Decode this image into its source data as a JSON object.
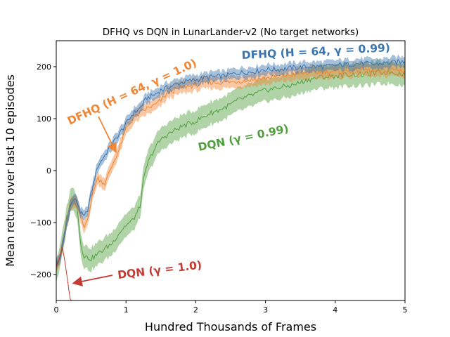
{
  "chart_data": {
    "type": "line",
    "title": "DFHQ vs DQN in LunarLander-v2 (No target networks)",
    "xlabel": "Hundred Thousands of Frames",
    "ylabel": "Mean return over last 10 episodes",
    "xlim": [
      0,
      5
    ],
    "ylim": [
      -250,
      250
    ],
    "xticks": [
      0,
      1,
      2,
      3,
      4,
      5
    ],
    "yticks": [
      -200,
      -100,
      0,
      100,
      200
    ],
    "grid": false,
    "legend": "none",
    "series": [
      {
        "name": "DFHQ (H = 64, γ = 0.99)",
        "color": "#3b75af",
        "band": 10,
        "x": [
          0,
          0.05,
          0.1,
          0.15,
          0.2,
          0.25,
          0.3,
          0.35,
          0.4,
          0.45,
          0.5,
          0.55,
          0.6,
          0.7,
          0.8,
          0.9,
          1.0,
          1.1,
          1.2,
          1.3,
          1.4,
          1.5,
          1.6,
          1.8,
          2.0,
          2.2,
          2.4,
          2.6,
          2.8,
          3.0,
          3.2,
          3.4,
          3.6,
          3.8,
          4.0,
          4.2,
          4.4,
          4.6,
          4.8,
          5.0
        ],
        "y": [
          -180,
          -170,
          -140,
          -100,
          -70,
          -55,
          -60,
          -80,
          -90,
          -75,
          -45,
          -15,
          10,
          30,
          50,
          70,
          90,
          110,
          120,
          140,
          145,
          155,
          160,
          170,
          175,
          180,
          182,
          188,
          190,
          195,
          195,
          198,
          200,
          200,
          202,
          205,
          206,
          205,
          208,
          210
        ]
      },
      {
        "name": "DFHQ (H = 64, γ = 1.0)",
        "color": "#ef8636",
        "band": 12,
        "x": [
          0,
          0.05,
          0.1,
          0.15,
          0.2,
          0.25,
          0.3,
          0.35,
          0.4,
          0.45,
          0.5,
          0.55,
          0.6,
          0.7,
          0.8,
          0.9,
          1.0,
          1.1,
          1.2,
          1.3,
          1.4,
          1.5,
          1.6,
          1.8,
          2.0,
          2.2,
          2.4,
          2.6,
          2.8,
          3.0,
          3.2,
          3.4,
          3.6,
          3.8,
          4.0,
          4.2,
          4.4,
          4.6,
          4.8,
          5.0
        ],
        "y": [
          -180,
          -170,
          -140,
          -100,
          -70,
          -58,
          -65,
          -90,
          -110,
          -90,
          -60,
          -30,
          -15,
          -25,
          10,
          40,
          80,
          100,
          110,
          120,
          125,
          135,
          150,
          160,
          165,
          170,
          170,
          172,
          175,
          178,
          182,
          185,
          188,
          190,
          190,
          192,
          195,
          190,
          195,
          192
        ]
      },
      {
        "name": "DQN (γ = 0.99)",
        "color": "#519e3e",
        "band": 22,
        "x": [
          0,
          0.05,
          0.1,
          0.15,
          0.2,
          0.25,
          0.3,
          0.35,
          0.4,
          0.5,
          0.6,
          0.7,
          0.8,
          0.9,
          1.0,
          1.1,
          1.2,
          1.25,
          1.3,
          1.4,
          1.5,
          1.6,
          1.8,
          2.0,
          2.2,
          2.4,
          2.6,
          2.8,
          3.0,
          3.2,
          3.4,
          3.6,
          3.8,
          4.0,
          4.2,
          4.4,
          4.6,
          4.8,
          5.0
        ],
        "y": [
          -190,
          -170,
          -130,
          -90,
          -60,
          -52,
          -70,
          -140,
          -165,
          -170,
          -160,
          -150,
          -140,
          -120,
          -105,
          -95,
          -70,
          -20,
          10,
          40,
          60,
          70,
          85,
          95,
          110,
          120,
          135,
          145,
          155,
          160,
          165,
          175,
          180,
          182,
          185,
          185,
          188,
          190,
          185
        ]
      },
      {
        "name": "DQN (γ = 1.0)",
        "color": "#c43b33",
        "band": 0,
        "x": [
          0,
          0.03,
          0.06,
          0.09,
          0.12,
          0.15,
          0.18,
          0.2,
          0.22,
          0.24
        ],
        "y": [
          -185,
          -175,
          -160,
          -150,
          -170,
          -200,
          -230,
          -245,
          -255,
          -260
        ]
      }
    ],
    "annotations": [
      {
        "text": "DFHQ (H = 64, γ = 0.99)",
        "color": "#3b75af",
        "series": 0
      },
      {
        "text": "DFHQ (H = 64, γ = 1.0)",
        "color": "#ef8636",
        "series": 1
      },
      {
        "text": "DQN (γ = 0.99)",
        "color": "#519e3e",
        "series": 2
      },
      {
        "text": "DQN (γ = 1.0)",
        "color": "#c43b33",
        "series": 3
      }
    ]
  }
}
